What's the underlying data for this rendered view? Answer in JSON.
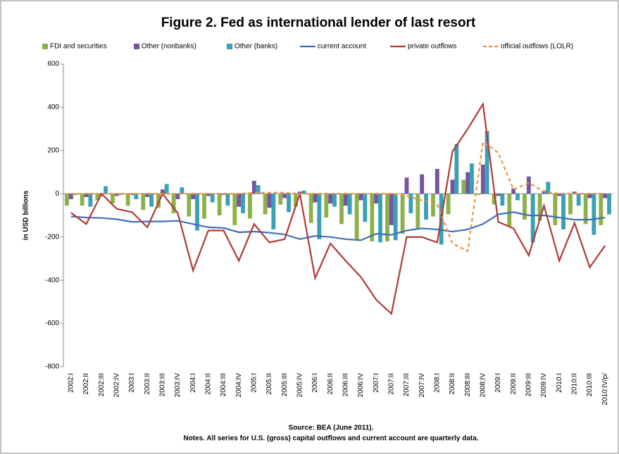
{
  "chart_data": {
    "type": "combo",
    "title": "Figure 2. Fed as international lender of last resort",
    "y_label": "in USD billions",
    "source": "Source: BEA (June 2011).",
    "notes": "Notes. All series for U.S. (gross) capital outflows and current account are quarterly data.",
    "categories": [
      "2002:I",
      "2002:II",
      "2002:III",
      "2002:IV",
      "2003:I",
      "2003:II",
      "2003:III",
      "2003:IV",
      "2004:I",
      "2004:II",
      "2004:III",
      "2004:IV",
      "2005:I",
      "2005:II",
      "2005:III",
      "2005:IV",
      "2006:I",
      "2006:II",
      "2006:III",
      "2006:IV",
      "2007:I",
      "2007:II",
      "2007:III",
      "2007:IV",
      "2008:I",
      "2008:II",
      "2008:III",
      "2008:IV",
      "2009:I",
      "2009:II",
      "2009:III",
      "2009:IV",
      "2010:I",
      "2010:II",
      "2010:III",
      "2010:IV/p/"
    ],
    "ylim": [
      -800,
      600
    ],
    "yticks": [
      -800,
      -600,
      -400,
      -200,
      0,
      200,
      400,
      600
    ],
    "series": [
      {
        "name": "FDI and securities",
        "color": "#8db04a",
        "kind": "bar",
        "values": [
          -55,
          -55,
          -30,
          -45,
          -55,
          -75,
          -65,
          -90,
          -105,
          -115,
          -100,
          -145,
          -115,
          -95,
          -50,
          -60,
          -135,
          -110,
          -140,
          -215,
          -220,
          -220,
          -185,
          -165,
          -105,
          -95,
          65,
          -5,
          -50,
          -150,
          -120,
          -125,
          -145,
          -95,
          -140,
          -145
        ]
      },
      {
        "name": "Other (nonbanks)",
        "color": "#7455a0",
        "kind": "bar",
        "values": [
          -25,
          -15,
          -10,
          -10,
          -5,
          -15,
          20,
          -25,
          -25,
          -10,
          -5,
          -60,
          60,
          -65,
          -20,
          10,
          -40,
          -45,
          -55,
          -30,
          -45,
          -145,
          75,
          90,
          115,
          65,
          100,
          135,
          -10,
          25,
          80,
          15,
          -10,
          10,
          -20,
          -20
        ]
      },
      {
        "name": "Other (banks)",
        "color": "#3aa0b8",
        "kind": "bar",
        "values": [
          -5,
          -60,
          35,
          -5,
          -25,
          -60,
          45,
          30,
          -170,
          -40,
          -55,
          -90,
          40,
          -165,
          -85,
          15,
          -210,
          -60,
          -95,
          -130,
          -225,
          -215,
          -90,
          -120,
          -235,
          230,
          140,
          290,
          -55,
          -30,
          -225,
          55,
          -165,
          -55,
          -190,
          -95
        ]
      },
      {
        "name": "current account",
        "color": "#3f6fb5",
        "kind": "line",
        "values": [
          -105,
          -110,
          -112,
          -118,
          -130,
          -128,
          -128,
          -125,
          -140,
          -155,
          -158,
          -178,
          -175,
          -180,
          -188,
          -210,
          -195,
          -200,
          -210,
          -215,
          -185,
          -190,
          -170,
          -160,
          -165,
          -175,
          -165,
          -140,
          -95,
          -85,
          -100,
          -100,
          -110,
          -120,
          -120,
          -110
        ]
      },
      {
        "name": "private outflows",
        "color": "#b03a36",
        "kind": "line",
        "values": [
          -88,
          -140,
          0,
          -70,
          -85,
          -155,
          0,
          -90,
          -355,
          -170,
          -170,
          -310,
          -140,
          -225,
          -210,
          0,
          -390,
          -230,
          -310,
          -385,
          -490,
          -555,
          -200,
          -200,
          -225,
          195,
          300,
          415,
          -130,
          -160,
          -285,
          -55,
          -310,
          -135,
          -340,
          -240
        ]
      },
      {
        "name": "official outflows (LOLR)",
        "color": "#f0913a",
        "kind": "line",
        "style": "dashed",
        "values": [
          0,
          0,
          0,
          0,
          0,
          0,
          0,
          0,
          0,
          0,
          0,
          0,
          5,
          5,
          5,
          0,
          0,
          0,
          0,
          0,
          0,
          0,
          -10,
          -30,
          -50,
          -230,
          -265,
          240,
          190,
          20,
          50,
          10,
          0,
          0,
          0,
          0
        ]
      }
    ]
  }
}
